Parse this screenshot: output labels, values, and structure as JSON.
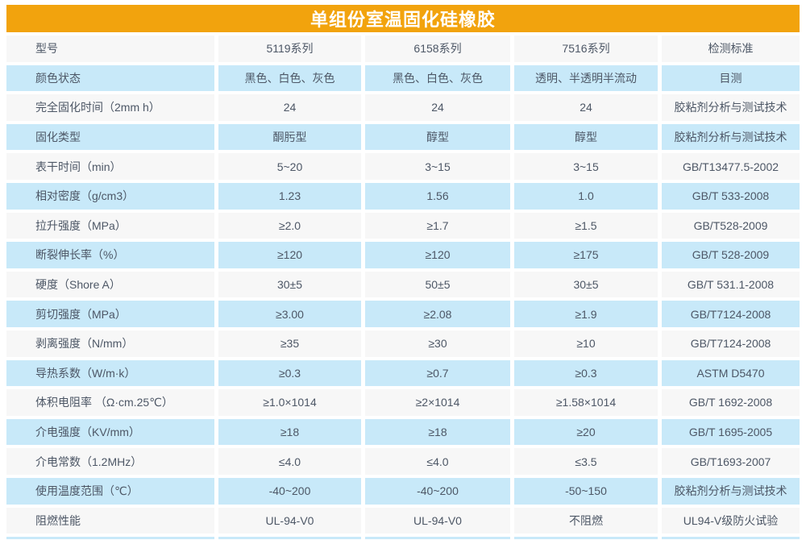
{
  "title": "单组份室温固化硅橡胶",
  "colors": {
    "title_bar_orange": "#F2A30D",
    "title_text": "#FFFFFF",
    "row_blue": "#C8E9F9",
    "row_gray": "#F7F7F7",
    "cell_text": "#4D5766"
  },
  "chart_data": {
    "type": "table",
    "title": "单组份室温固化硅橡胶",
    "columns": [
      "型号",
      "5119系列",
      "6158系列",
      "7516系列",
      "检测标准"
    ],
    "rows": [
      [
        "颜色状态",
        "黑色、白色、灰色",
        "黑色、白色、灰色",
        "透明、半透明半流动",
        "目测"
      ],
      [
        "完全固化时间（2mm h）",
        "24",
        "24",
        "24",
        "胶粘剂分析与测试技术"
      ],
      [
        "固化类型",
        "酮肟型",
        "醇型",
        "醇型",
        "胶粘剂分析与测试技术"
      ],
      [
        "表干时间（min）",
        "5~20",
        "3~15",
        "3~15",
        "GB/T13477.5-2002"
      ],
      [
        "相对密度（g/cm3）",
        "1.23",
        "1.56",
        "1.0",
        "GB/T 533-2008"
      ],
      [
        "拉升强度（MPa）",
        "≥2.0",
        "≥1.7",
        "≥1.5",
        "GB/T528-2009"
      ],
      [
        "断裂伸长率（%）",
        "≥120",
        "≥120",
        "≥175",
        "GB/T 528-2009"
      ],
      [
        "硬度（Shore A）",
        "30±5",
        "50±5",
        "30±5",
        "GB/T 531.1-2008"
      ],
      [
        "剪切强度（MPa）",
        "≥3.00",
        "≥2.08",
        "≥1.9",
        "GB/T7124-2008"
      ],
      [
        "剥离强度（N/mm）",
        "≥35",
        "≥30",
        "≥10",
        "GB/T7124-2008"
      ],
      [
        "导热系数（W/m·k）",
        "≥0.3",
        "≥0.7",
        "≥0.3",
        "ASTM D5470"
      ],
      [
        "体积电阻率 （Ω·cm.25℃）",
        "≥1.0×1014",
        "≥2×1014",
        "≥1.58×1014",
        "GB/T 1692-2008"
      ],
      [
        "介电强度（KV/mm）",
        "≥18",
        "≥18",
        "≥20",
        "GB/T 1695-2005"
      ],
      [
        "介电常数（1.2MHz）",
        "≤4.0",
        "≤4.0",
        "≤3.5",
        "GB/T1693-2007"
      ],
      [
        "使用温度范围（℃）",
        "-40~200",
        "-40~200",
        "-50~150",
        "胶粘剂分析与测试技术"
      ],
      [
        "阻燃性能",
        "UL-94-V0",
        "UL-94-V0",
        "不阻燃",
        "UL94-V级防火试验"
      ]
    ]
  }
}
